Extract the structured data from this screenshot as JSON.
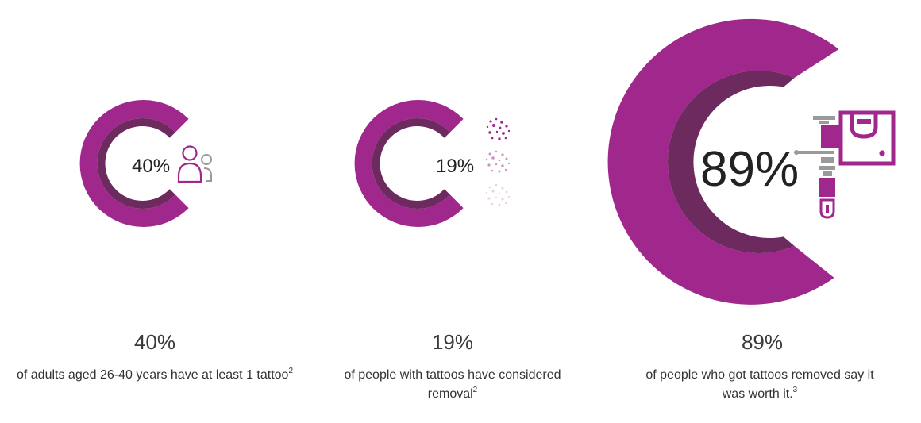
{
  "colors": {
    "outer_ring": "#a0278c",
    "inner_ring": "#6d2a5e",
    "icon_magenta": "#a0278c",
    "icon_gray": "#9a9a9a"
  },
  "stats": [
    {
      "ring_label": "40%",
      "value": "40%",
      "caption": "of adults aged 26-40 years have at least 1 tattoo",
      "footnote": "2",
      "icon": "person-icon"
    },
    {
      "ring_label": "19%",
      "value": "19%",
      "caption": "of people with tattoos have considered removal",
      "footnote": "2",
      "icon": "ink-dots-icon"
    },
    {
      "ring_label": "89%",
      "value": "89%",
      "caption": "of people who got tattoos removed say it was worth it.",
      "footnote": "3",
      "icon": "tattoo-machine-icon"
    }
  ]
}
